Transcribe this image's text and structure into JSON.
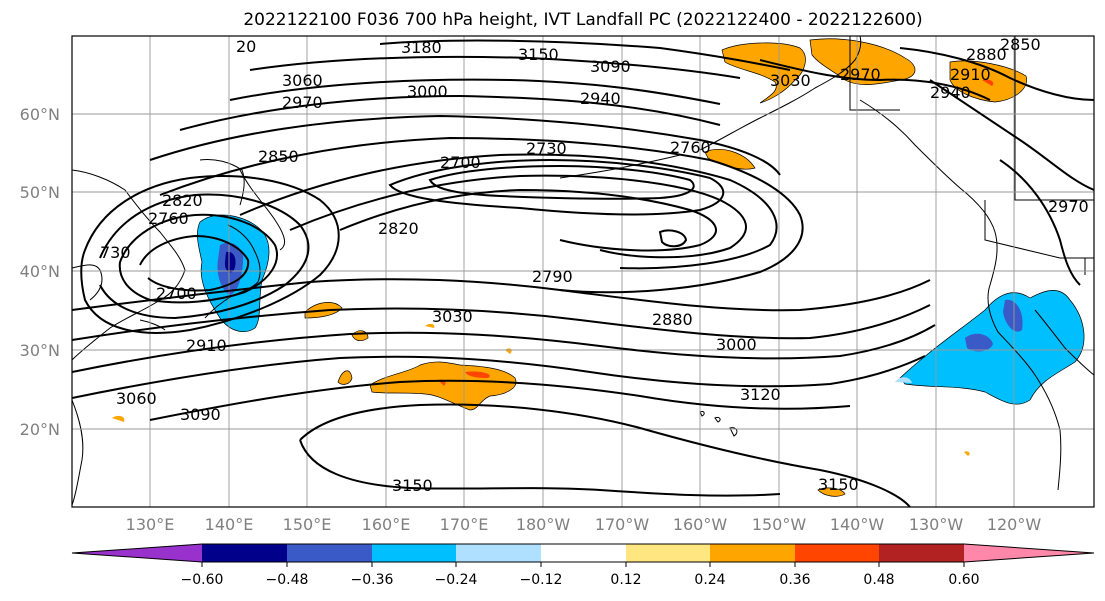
{
  "title": "2022122100 F036 700 hPa height, IVT Landfall PC (2022122400 - 2022122600)",
  "lat_labels": [
    "60°N",
    "50°N",
    "40°N",
    "30°N",
    "20°N"
  ],
  "lon_labels": [
    "130°E",
    "140°E",
    "150°E",
    "160°E",
    "170°E",
    "180°W",
    "170°W",
    "160°W",
    "150°W",
    "140°W",
    "130°W",
    "120°W"
  ],
  "contour_labels": [
    "3180",
    "3150",
    "3090",
    "3060",
    "3000",
    "2970",
    "2940",
    "2850",
    "2730",
    "2700",
    "2760",
    "2820",
    "2760",
    "2790",
    "2820",
    "3030",
    "2880",
    "3000",
    "3120",
    "3060",
    "3090",
    "3150",
    "3150",
    "2700",
    "2910",
    "2880",
    "2850",
    "2910",
    "2940",
    "3030",
    "2970",
    "2970",
    "20",
    "730"
  ],
  "colorbar": {
    "ticks": [
      "−0.60",
      "−0.48",
      "−0.36",
      "−0.24",
      "−0.12",
      "0.12",
      "0.24",
      "0.36",
      "0.48",
      "0.60"
    ],
    "colors": [
      "#9932cc",
      "#00008b",
      "#3a5bc7",
      "#00bfff",
      "#b0e0ff",
      "#ffffff",
      "#ffe680",
      "#ffa500",
      "#ff4500",
      "#b22222",
      "#ff88aa"
    ]
  },
  "shading_colors": {
    "strong_negative": "#3a5bc7",
    "negative": "#00bfff",
    "weak_negative": "#b0e0ff",
    "positive": "#ffa500",
    "strong_positive": "#ff4500"
  }
}
